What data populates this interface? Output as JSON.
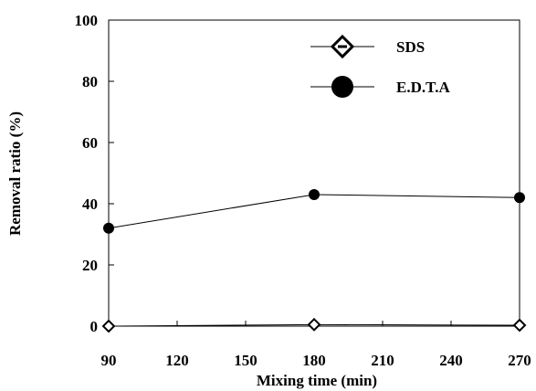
{
  "chart_data": {
    "type": "line",
    "title": "",
    "xlabel": "Mixing time (min)",
    "ylabel": "Removal ratio (%)",
    "xlim": [
      90,
      270
    ],
    "ylim": [
      0,
      100
    ],
    "xticks": [
      90,
      120,
      150,
      180,
      210,
      240,
      270
    ],
    "yticks": [
      0,
      20,
      40,
      60,
      80,
      100
    ],
    "grid": false,
    "legend_position": "top-right",
    "x": [
      90,
      180,
      270
    ],
    "series": [
      {
        "name": "SDS",
        "marker": "diamond-open",
        "color": "#000000",
        "values": [
          0,
          0.5,
          0.3
        ]
      },
      {
        "name": "E.D.T.A",
        "marker": "circle-filled",
        "color": "#000000",
        "values": [
          32,
          43,
          42
        ]
      }
    ]
  }
}
